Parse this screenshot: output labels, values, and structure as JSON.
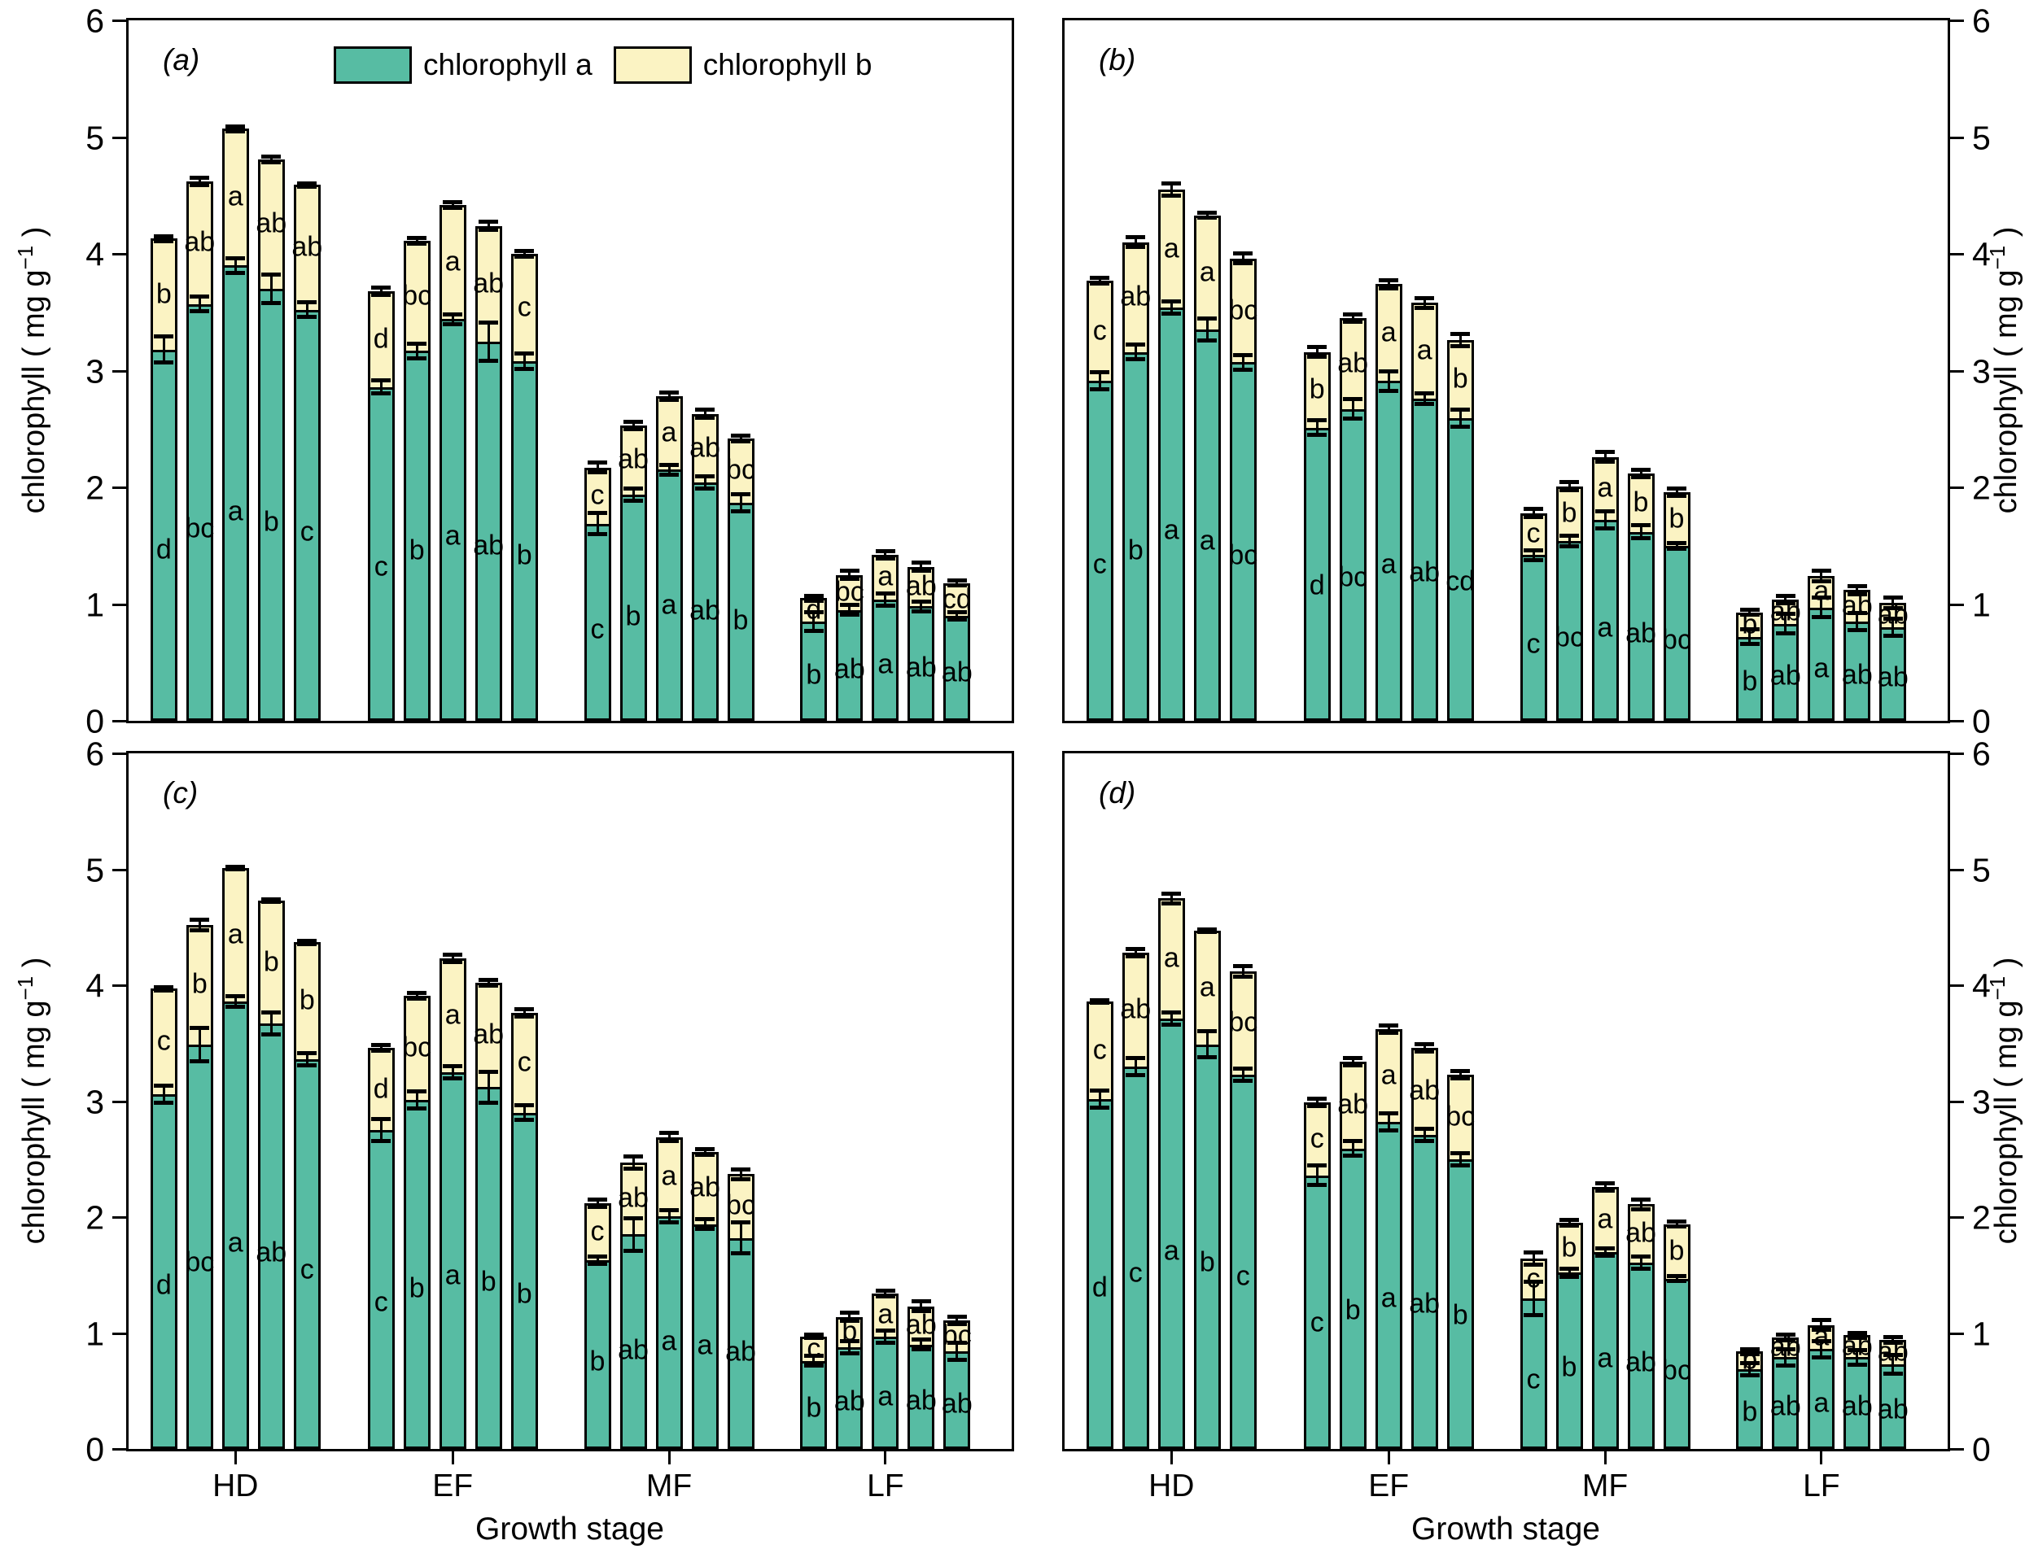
{
  "figure": {
    "background": "#ffffff",
    "series_colors": {
      "chlorophyll_a": "#57BCA3",
      "chlorophyll_b": "#FBF3C3"
    },
    "legend": {
      "items": [
        {
          "label": "chlorophyll a",
          "color": "#57BCA3"
        },
        {
          "label": "chlorophyll b",
          "color": "#FBF3C3"
        }
      ]
    },
    "axes": {
      "ylabel_base": "chlorophyll ( mg g",
      "ylabel_sup": "−1",
      "ylabel_end": " )",
      "xlabel": "Growth stage",
      "yticks": [
        0,
        1,
        2,
        3,
        4,
        5,
        6
      ],
      "ylim": [
        0,
        6
      ],
      "categories": [
        "HD",
        "EF",
        "MF",
        "LF"
      ]
    }
  },
  "chart_data": [
    {
      "panel": "a",
      "label": "(a)",
      "type": "bar",
      "stacked": true,
      "ylim": [
        0,
        6
      ],
      "categories": [
        "HD",
        "EF",
        "MF",
        "LF"
      ],
      "series_names": [
        "chlorophyll a",
        "chlorophyll b"
      ],
      "groups": [
        {
          "category": "HD",
          "chl_a": [
            3.18,
            3.57,
            3.9,
            3.7,
            3.52
          ],
          "chl_b": [
            0.95,
            1.05,
            1.17,
            1.11,
            1.07
          ],
          "err_a": [
            0.12,
            0.07,
            0.07,
            0.13,
            0.07
          ],
          "err_total": [
            0.03,
            0.04,
            0.03,
            0.03,
            0.02
          ],
          "letters_a": [
            "d",
            "bc",
            "a",
            "b",
            "c"
          ],
          "letters_b": [
            "b",
            "ab",
            "a",
            "ab",
            "ab"
          ]
        },
        {
          "category": "EF",
          "chl_a": [
            2.86,
            3.17,
            3.44,
            3.25,
            3.08
          ],
          "chl_b": [
            0.82,
            0.94,
            0.98,
            0.99,
            0.92
          ],
          "err_a": [
            0.06,
            0.07,
            0.05,
            0.17,
            0.07
          ],
          "err_total": [
            0.04,
            0.03,
            0.03,
            0.04,
            0.03
          ],
          "letters_a": [
            "c",
            "b",
            "a",
            "ab",
            "b"
          ],
          "letters_b": [
            "d",
            "bc",
            "a",
            "ab",
            "c"
          ]
        },
        {
          "category": "MF",
          "chl_a": [
            1.69,
            1.94,
            2.15,
            2.04,
            1.87
          ],
          "chl_b": [
            0.48,
            0.59,
            0.63,
            0.59,
            0.55
          ],
          "err_a": [
            0.1,
            0.06,
            0.05,
            0.06,
            0.08
          ],
          "err_total": [
            0.05,
            0.04,
            0.04,
            0.04,
            0.03
          ],
          "letters_a": [
            "c",
            "b",
            "a",
            "ab",
            "b"
          ],
          "letters_b": [
            "c",
            "ab",
            "a",
            "ab",
            "bc"
          ]
        },
        {
          "category": "LF",
          "chl_a": [
            0.85,
            0.95,
            1.04,
            0.98,
            0.9
          ],
          "chl_b": [
            0.2,
            0.3,
            0.38,
            0.34,
            0.28
          ],
          "err_a": [
            0.09,
            0.05,
            0.06,
            0.05,
            0.04
          ],
          "err_total": [
            0.03,
            0.04,
            0.04,
            0.04,
            0.03
          ],
          "letters_a": [
            "b",
            "ab",
            "a",
            "ab",
            "ab"
          ],
          "letters_b": [
            "d",
            "bc",
            "a",
            "ab",
            "cd"
          ]
        }
      ]
    },
    {
      "panel": "b",
      "label": "(b)",
      "type": "bar",
      "stacked": true,
      "ylim": [
        0,
        6
      ],
      "categories": [
        "HD",
        "EF",
        "MF",
        "LF"
      ],
      "series_names": [
        "chlorophyll a",
        "chlorophyll b"
      ],
      "groups": [
        {
          "category": "HD",
          "chl_a": [
            2.91,
            3.16,
            3.54,
            3.35,
            3.07
          ],
          "chl_b": [
            0.86,
            0.94,
            1.01,
            0.98,
            0.89
          ],
          "err_a": [
            0.08,
            0.07,
            0.06,
            0.1,
            0.07
          ],
          "err_total": [
            0.03,
            0.05,
            0.06,
            0.03,
            0.05
          ],
          "letters_a": [
            "c",
            "b",
            "a",
            "a",
            "bc"
          ],
          "letters_b": [
            "c",
            "ab",
            "a",
            "a",
            "bc"
          ]
        },
        {
          "category": "EF",
          "chl_a": [
            2.51,
            2.67,
            2.91,
            2.76,
            2.59
          ],
          "chl_b": [
            0.65,
            0.78,
            0.83,
            0.82,
            0.67
          ],
          "err_a": [
            0.07,
            0.09,
            0.09,
            0.05,
            0.08
          ],
          "err_total": [
            0.05,
            0.04,
            0.04,
            0.05,
            0.06
          ],
          "letters_a": [
            "d",
            "bc",
            "a",
            "ab",
            "cd"
          ],
          "letters_b": [
            "b",
            "ab",
            "a",
            "a",
            "b"
          ]
        },
        {
          "category": "MF",
          "chl_a": [
            1.42,
            1.54,
            1.72,
            1.62,
            1.5
          ],
          "chl_b": [
            0.36,
            0.47,
            0.54,
            0.5,
            0.46
          ],
          "err_a": [
            0.05,
            0.05,
            0.08,
            0.06,
            0.03
          ],
          "err_total": [
            0.04,
            0.04,
            0.05,
            0.04,
            0.04
          ],
          "letters_a": [
            "c",
            "bc",
            "a",
            "ab",
            "bc"
          ],
          "letters_b": [
            "c",
            "b",
            "a",
            "b",
            "b"
          ]
        },
        {
          "category": "LF",
          "chl_a": [
            0.72,
            0.83,
            0.97,
            0.85,
            0.8
          ],
          "chl_b": [
            0.21,
            0.21,
            0.27,
            0.27,
            0.21
          ],
          "err_a": [
            0.07,
            0.09,
            0.09,
            0.08,
            0.08
          ],
          "err_total": [
            0.03,
            0.04,
            0.05,
            0.04,
            0.05
          ],
          "letters_a": [
            "b",
            "ab",
            "a",
            "ab",
            "ab"
          ],
          "letters_b": [
            "b",
            "ab",
            "a",
            "ab",
            "ab"
          ]
        }
      ]
    },
    {
      "panel": "c",
      "label": "(c)",
      "type": "bar",
      "stacked": true,
      "ylim": [
        0,
        6
      ],
      "categories": [
        "HD",
        "EF",
        "MF",
        "LF"
      ],
      "series_names": [
        "chlorophyll a",
        "chlorophyll b"
      ],
      "groups": [
        {
          "category": "HD",
          "chl_a": [
            3.06,
            3.49,
            3.86,
            3.67,
            3.36
          ],
          "chl_b": [
            0.91,
            1.03,
            1.15,
            1.06,
            1.01
          ],
          "err_a": [
            0.08,
            0.15,
            0.05,
            0.1,
            0.06
          ],
          "err_total": [
            0.02,
            0.05,
            0.02,
            0.02,
            0.02
          ],
          "letters_a": [
            "d",
            "bc",
            "a",
            "ab",
            "c"
          ],
          "letters_b": [
            "c",
            "b",
            "a",
            "b",
            "b"
          ]
        },
        {
          "category": "EF",
          "chl_a": [
            2.75,
            3.01,
            3.25,
            3.12,
            2.9
          ],
          "chl_b": [
            0.71,
            0.9,
            0.98,
            0.9,
            0.86
          ],
          "err_a": [
            0.1,
            0.08,
            0.06,
            0.14,
            0.07
          ],
          "err_total": [
            0.03,
            0.03,
            0.04,
            0.03,
            0.04
          ],
          "letters_a": [
            "c",
            "b",
            "a",
            "b",
            "b"
          ],
          "letters_b": [
            "d",
            "bc",
            "a",
            "ab",
            "c"
          ]
        },
        {
          "category": "MF",
          "chl_a": [
            1.63,
            1.85,
            2.01,
            1.94,
            1.82
          ],
          "chl_b": [
            0.49,
            0.62,
            0.68,
            0.62,
            0.55
          ],
          "err_a": [
            0.04,
            0.15,
            0.06,
            0.05,
            0.14
          ],
          "err_total": [
            0.04,
            0.06,
            0.04,
            0.03,
            0.05
          ],
          "letters_a": [
            "b",
            "ab",
            "a",
            "a",
            "ab"
          ],
          "letters_b": [
            "c",
            "ab",
            "a",
            "ab",
            "bc"
          ]
        },
        {
          "category": "LF",
          "chl_a": [
            0.76,
            0.88,
            0.97,
            0.9,
            0.84
          ],
          "chl_b": [
            0.21,
            0.26,
            0.37,
            0.33,
            0.27
          ],
          "err_a": [
            0.05,
            0.06,
            0.06,
            0.05,
            0.08
          ],
          "err_total": [
            0.02,
            0.04,
            0.03,
            0.05,
            0.04
          ],
          "letters_a": [
            "b",
            "ab",
            "a",
            "ab",
            "ab"
          ],
          "letters_b": [
            "c",
            "b",
            "a",
            "ab",
            "bc"
          ]
        }
      ]
    },
    {
      "panel": "d",
      "label": "(d)",
      "type": "bar",
      "stacked": true,
      "ylim": [
        0,
        6
      ],
      "categories": [
        "HD",
        "EF",
        "MF",
        "LF"
      ],
      "series_names": [
        "chlorophyll a",
        "chlorophyll b"
      ],
      "groups": [
        {
          "category": "HD",
          "chl_a": [
            3.02,
            3.3,
            3.71,
            3.49,
            3.23
          ],
          "chl_b": [
            0.84,
            0.98,
            1.04,
            0.98,
            0.89
          ],
          "err_a": [
            0.08,
            0.08,
            0.06,
            0.12,
            0.06
          ],
          "err_total": [
            0.02,
            0.04,
            0.05,
            0.02,
            0.05
          ],
          "letters_a": [
            "d",
            "c",
            "a",
            "b",
            "c"
          ],
          "letters_b": [
            "c",
            "ab",
            "a",
            "a",
            "bc"
          ]
        },
        {
          "category": "EF",
          "chl_a": [
            2.36,
            2.59,
            2.82,
            2.71,
            2.5
          ],
          "chl_b": [
            0.63,
            0.75,
            0.8,
            0.75,
            0.73
          ],
          "err_a": [
            0.09,
            0.07,
            0.08,
            0.06,
            0.06
          ],
          "err_total": [
            0.04,
            0.04,
            0.04,
            0.04,
            0.04
          ],
          "letters_a": [
            "c",
            "b",
            "a",
            "ab",
            "b"
          ],
          "letters_b": [
            "c",
            "ab",
            "a",
            "ab",
            "bc"
          ]
        },
        {
          "category": "MF",
          "chl_a": [
            1.3,
            1.52,
            1.7,
            1.61,
            1.47
          ],
          "chl_b": [
            0.34,
            0.43,
            0.56,
            0.5,
            0.47
          ],
          "err_a": [
            0.15,
            0.04,
            0.04,
            0.06,
            0.03
          ],
          "err_total": [
            0.06,
            0.03,
            0.04,
            0.05,
            0.03
          ],
          "letters_a": [
            "c",
            "b",
            "a",
            "ab",
            "bc"
          ],
          "letters_b": [
            "c",
            "b",
            "a",
            "ab",
            "b"
          ]
        },
        {
          "category": "LF",
          "chl_a": [
            0.69,
            0.79,
            0.86,
            0.79,
            0.73
          ],
          "chl_b": [
            0.15,
            0.17,
            0.21,
            0.19,
            0.21
          ],
          "err_a": [
            0.06,
            0.08,
            0.08,
            0.07,
            0.09
          ],
          "err_total": [
            0.03,
            0.03,
            0.05,
            0.03,
            0.03
          ],
          "letters_a": [
            "b",
            "ab",
            "a",
            "ab",
            "ab"
          ],
          "letters_b": [
            "b",
            "ab",
            "a",
            "ab",
            "ab"
          ]
        }
      ]
    }
  ]
}
